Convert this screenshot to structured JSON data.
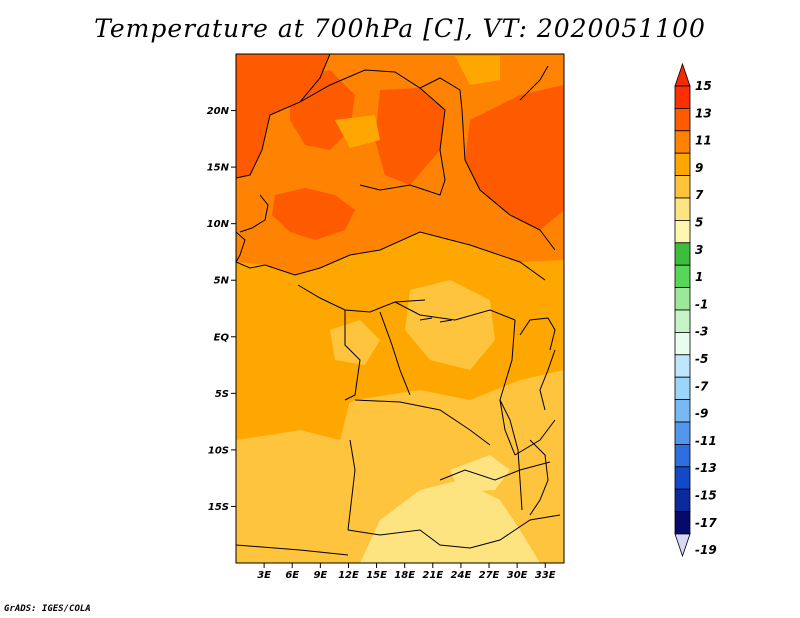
{
  "title": "Temperature at 700hPa [C], VT: 2020051100",
  "footer": "GrADS: IGES/COLA",
  "map": {
    "lat_labels": [
      "20N",
      "15N",
      "10N",
      "5N",
      "EQ",
      "5S",
      "10S",
      "15S"
    ],
    "lat_values": [
      20,
      15,
      10,
      5,
      0,
      -5,
      -10,
      -15
    ],
    "lon_labels": [
      "3E",
      "6E",
      "9E",
      "12E",
      "15E",
      "18E",
      "21E",
      "24E",
      "27E",
      "30E",
      "33E"
    ],
    "lon_values": [
      3,
      6,
      9,
      12,
      15,
      18,
      21,
      24,
      27,
      30,
      33
    ],
    "lon_range": [
      0,
      35
    ],
    "lat_range": [
      -20,
      25
    ]
  },
  "colorbar": {
    "labels": [
      "15",
      "13",
      "11",
      "9",
      "7",
      "5",
      "3",
      "1",
      "-1",
      "-3",
      "-5",
      "-7",
      "-9",
      "-11",
      "-13",
      "-15",
      "-17",
      "-19"
    ],
    "colors": [
      "#fe2f01",
      "#fe5a00",
      "#fe8302",
      "#fea701",
      "#fec43e",
      "#fee480",
      "#fdf6b0",
      "#3cbd3c",
      "#58d658",
      "#9be89b",
      "#c7f4c6",
      "#e8fcf0",
      "#bee7fd",
      "#9bd6f8",
      "#78b9f3",
      "#5297ea",
      "#2d6ee0",
      "#1348c8",
      "#0b2a9c",
      "#070a6a"
    ],
    "top_arrow_color": "#f42a02",
    "bottom_arrow_color": "#d8d8f8"
  }
}
